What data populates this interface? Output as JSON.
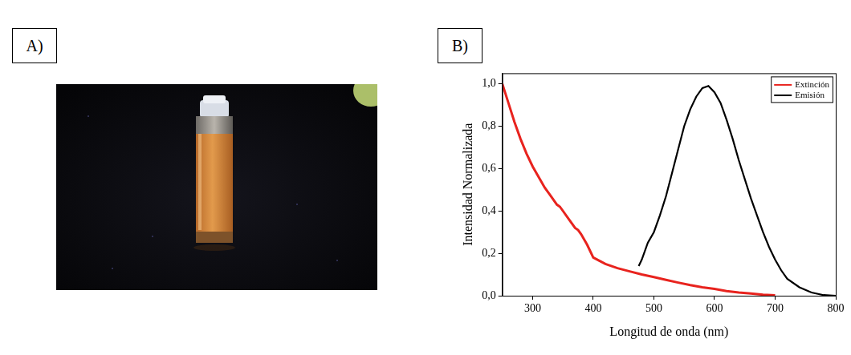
{
  "panel_labels": [
    "A)",
    "B)"
  ],
  "chart_data": {
    "type": "line",
    "xlabel": "Longitud de onda (nm)",
    "ylabel": "Intensidad Normalizada",
    "xlim": [
      250,
      800
    ],
    "xticks": [
      300,
      400,
      500,
      600,
      700,
      800
    ],
    "ylim": [
      0,
      1.05
    ],
    "yticks": [
      {
        "value": 0,
        "label": "0,0"
      },
      {
        "value": 0.2,
        "label": "0,2"
      },
      {
        "value": 0.4,
        "label": "0,4"
      },
      {
        "value": 0.6,
        "label": "0,6"
      },
      {
        "value": 0.8,
        "label": "0,8"
      },
      {
        "value": 1.0,
        "label": "1,0"
      }
    ],
    "grid": false,
    "legend": "upper right",
    "series": [
      {
        "name": "Extinción",
        "color": "#e8231e",
        "x": [
          250,
          260,
          270,
          280,
          290,
          300,
          310,
          320,
          330,
          340,
          345,
          350,
          360,
          370,
          375,
          380,
          390,
          400,
          410,
          420,
          440,
          460,
          480,
          500,
          520,
          540,
          560,
          580,
          600,
          620,
          640,
          660,
          680,
          700
        ],
        "values": [
          1.0,
          0.91,
          0.82,
          0.74,
          0.67,
          0.61,
          0.56,
          0.51,
          0.47,
          0.43,
          0.42,
          0.4,
          0.36,
          0.32,
          0.31,
          0.29,
          0.24,
          0.18,
          0.165,
          0.15,
          0.13,
          0.115,
          0.1,
          0.088,
          0.075,
          0.062,
          0.05,
          0.04,
          0.032,
          0.022,
          0.015,
          0.01,
          0.005,
          0.002
        ]
      },
      {
        "name": "Emisión",
        "color": "#000000",
        "x": [
          475,
          480,
          490,
          500,
          510,
          520,
          530,
          540,
          550,
          560,
          570,
          580,
          590,
          600,
          610,
          620,
          630,
          640,
          650,
          660,
          670,
          680,
          690,
          700,
          710,
          720,
          740,
          760,
          780,
          800
        ],
        "values": [
          0.14,
          0.17,
          0.25,
          0.3,
          0.38,
          0.47,
          0.58,
          0.69,
          0.8,
          0.88,
          0.94,
          0.98,
          0.99,
          0.96,
          0.91,
          0.83,
          0.74,
          0.64,
          0.55,
          0.46,
          0.38,
          0.3,
          0.23,
          0.17,
          0.12,
          0.08,
          0.04,
          0.015,
          0.003,
          0
        ]
      }
    ]
  }
}
